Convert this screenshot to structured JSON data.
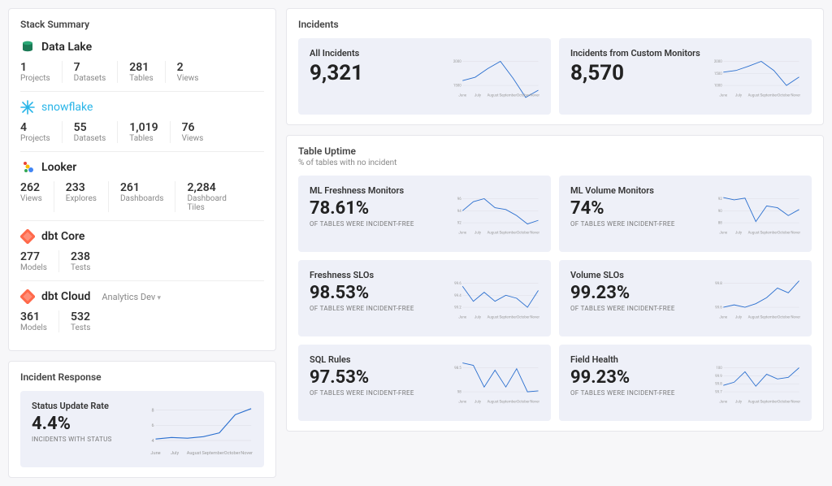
{
  "months": [
    "June",
    "July",
    "August",
    "September",
    "October",
    "November"
  ],
  "colors": {
    "line": "#2a6fcf",
    "tile_bg": "#eef0f8",
    "grid": "#d8d8e0",
    "card_border": "#e6e6eb",
    "page_bg": "#f7f7f9",
    "snowflake": "#29b5e8",
    "dbt": "#ff694b",
    "looker1": "#ea4335",
    "looker2": "#fbbc04",
    "looker3": "#34a853",
    "looker4": "#4285f4",
    "datalake1": "#2aa876",
    "datalake2": "#1c7a56"
  },
  "left": {
    "stack_summary_title": "Stack Summary",
    "incident_response_title": "Incident Response",
    "status_tile": {
      "title": "Status Update Rate",
      "value": "4.4%",
      "subtitle": "INCIDENTS WITH STATUS",
      "yticks": [
        4,
        6,
        8
      ],
      "series": [
        4.2,
        4.4,
        4.3,
        4.5,
        5.0,
        7.4,
        8.2
      ]
    },
    "stacks": [
      {
        "id": "datalake",
        "name": "Data Lake",
        "icon": "datalake",
        "stats": [
          [
            "1",
            "Projects"
          ],
          [
            "7",
            "Datasets"
          ],
          [
            "281",
            "Tables"
          ],
          [
            "2",
            "Views"
          ]
        ]
      },
      {
        "id": "snowflake",
        "name": "snowflake",
        "icon": "snowflake",
        "stats": [
          [
            "4",
            "Projects"
          ],
          [
            "55",
            "Datasets"
          ],
          [
            "1,019",
            "Tables"
          ],
          [
            "76",
            "Views"
          ]
        ]
      },
      {
        "id": "looker",
        "name": "Looker",
        "icon": "looker",
        "stats": [
          [
            "262",
            "Views"
          ],
          [
            "233",
            "Explores"
          ],
          [
            "261",
            "Dashboards"
          ],
          [
            "2,284",
            "Dashboard Tiles"
          ]
        ]
      },
      {
        "id": "dbtcore",
        "name": "dbt Core",
        "icon": "dbt",
        "stats": [
          [
            "277",
            "Models"
          ],
          [
            "238",
            "Tests"
          ]
        ]
      },
      {
        "id": "dbtcloud",
        "name": "dbt Cloud",
        "icon": "dbt",
        "env": "Analytics Dev",
        "stats": [
          [
            "361",
            "Models"
          ],
          [
            "532",
            "Tests"
          ]
        ]
      }
    ]
  },
  "incidents": {
    "title": "Incidents",
    "tiles": [
      {
        "title": "All Incidents",
        "value": "9,321",
        "yticks": [
          1500,
          2000
        ],
        "series": [
          1600,
          1670,
          1850,
          2000,
          1650,
          1250,
          1400
        ]
      },
      {
        "title": "Incidents from Custom Monitors",
        "value": "8,570",
        "yticks": [
          1000,
          1500,
          2000
        ],
        "series": [
          1550,
          1620,
          1800,
          2000,
          1620,
          1000,
          1350
        ]
      }
    ]
  },
  "uptime": {
    "title": "Table Uptime",
    "subtitle": "% of tables with no incident",
    "tiles": [
      {
        "title": "ML Freshness Monitors",
        "value": "78.61%",
        "sub": "OF TABLES WERE INCIDENT-FREE",
        "yticks": [
          92,
          94,
          96
        ],
        "series": [
          94,
          95.5,
          96,
          94.5,
          94.2,
          93.2,
          91.8,
          92.4
        ]
      },
      {
        "title": "ML Volume Monitors",
        "value": "74%",
        "sub": "OF TABLES WERE INCIDENT-FREE",
        "yticks": [
          88,
          90,
          92
        ],
        "series": [
          92.2,
          91.8,
          92.1,
          88.2,
          90.8,
          90.5,
          89.2,
          90.2
        ]
      },
      {
        "title": "Freshness SLOs",
        "value": "98.53%",
        "sub": "OF TABLES WERE INCIDENT-FREE",
        "yticks": [
          99.2,
          99.4,
          99.6
        ],
        "series": [
          99.55,
          99.3,
          99.45,
          99.3,
          99.4,
          99.35,
          99.2,
          99.48
        ]
      },
      {
        "title": "Volume SLOs",
        "value": "99.23%",
        "sub": "OF TABLES WERE INCIDENT-FREE",
        "yticks": [
          99.6,
          99.8
        ],
        "series": [
          99.6,
          99.62,
          99.6,
          99.63,
          99.68,
          99.76,
          99.72,
          99.82
        ]
      },
      {
        "title": "SQL Rules",
        "value": "97.53%",
        "sub": "OF TABLES WERE INCIDENT-FREE",
        "yticks": [
          98,
          98.5
        ],
        "series": [
          98.6,
          98.55,
          98.1,
          98.45,
          98.1,
          98.48,
          98.0,
          98.02
        ]
      },
      {
        "title": "Field Health",
        "value": "99.23%",
        "sub": "OF TABLES WERE INCIDENT-FREE",
        "yticks": [
          99.7,
          99.8,
          99.9,
          100
        ],
        "series": [
          99.78,
          99.82,
          99.95,
          99.77,
          99.92,
          99.86,
          99.88,
          100
        ]
      }
    ]
  }
}
